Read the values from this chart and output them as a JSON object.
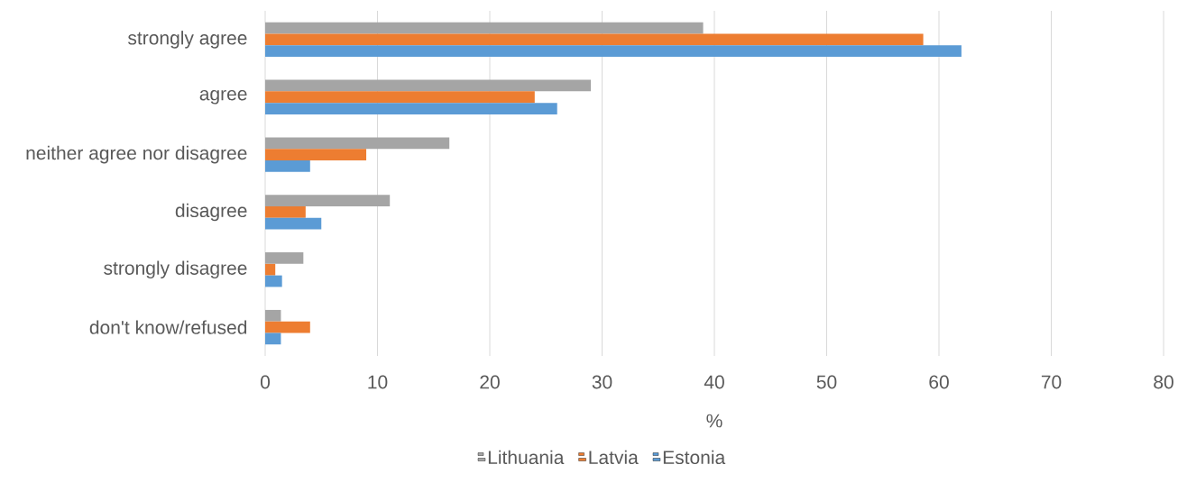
{
  "chart_data": {
    "type": "bar",
    "orientation": "horizontal",
    "xlabel": "%",
    "categories": [
      "strongly agree",
      "agree",
      "neither agree nor disagree",
      "disagree",
      "strongly disagree",
      "don't know/refused"
    ],
    "series": [
      {
        "name": "Lithuania",
        "color": "#a5a5a5",
        "values": [
          39,
          29,
          16.4,
          11.1,
          3.4,
          1.4
        ]
      },
      {
        "name": "Latvia",
        "color": "#ed7d31",
        "values": [
          58.6,
          24,
          9,
          3.6,
          0.9,
          4
        ]
      },
      {
        "name": "Estonia",
        "color": "#5b9bd5",
        "values": [
          62,
          26,
          4,
          5,
          1.5,
          1.4
        ]
      }
    ],
    "xlim": [
      0,
      80
    ],
    "xticks": [
      0,
      10,
      20,
      30,
      40,
      50,
      60,
      70,
      80
    ],
    "grid": "x",
    "legend": "bottom"
  }
}
